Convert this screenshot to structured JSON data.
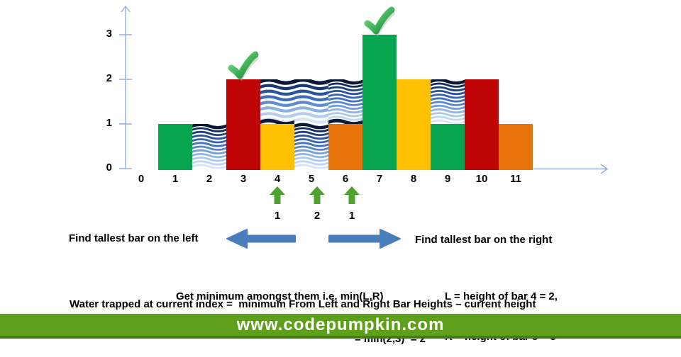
{
  "colors": {
    "green": "#08A550",
    "red": "#C00505",
    "yellow": "#FFC003",
    "orange": "#E7730B",
    "axis_blue": "#93AFD7",
    "arrow_blue": "#4A7EBB",
    "trapped_arrow_green": "#4DA32F",
    "check_gradient": [
      "#84DF8A",
      "#0A8A31"
    ],
    "check_shadow": "#9DB09D",
    "water_stripes": [
      "#0C1A33",
      "#1A3C80",
      "#2F5CAD",
      "#4A7AC6",
      "#7FA5DC",
      "#AECBEC",
      "#D7E4F6"
    ]
  },
  "chart_data": {
    "type": "bar",
    "x_tick_labels": [
      "0",
      "1",
      "2",
      "3",
      "4",
      "5",
      "6",
      "7",
      "8",
      "9",
      "10",
      "11"
    ],
    "y_tick_labels": [
      "0",
      "1",
      "2",
      "3"
    ],
    "ylim": [
      0,
      3.6
    ],
    "grid": false,
    "bars": [
      {
        "x": 1,
        "height": 1,
        "color": "green"
      },
      {
        "x": 2,
        "height": 0,
        "color": null
      },
      {
        "x": 3,
        "height": 2,
        "color": "red",
        "checkmark": true
      },
      {
        "x": 4,
        "height": 1,
        "color": "yellow"
      },
      {
        "x": 5,
        "height": 0,
        "color": null
      },
      {
        "x": 6,
        "height": 1,
        "color": "orange"
      },
      {
        "x": 7,
        "height": 3,
        "color": "green",
        "checkmark": true
      },
      {
        "x": 8,
        "height": 2,
        "color": "yellow"
      },
      {
        "x": 9,
        "height": 1,
        "color": "green"
      },
      {
        "x": 10,
        "height": 2,
        "color": "red"
      },
      {
        "x": 11,
        "height": 1,
        "color": "orange"
      }
    ],
    "water_regions": [
      {
        "x": 2,
        "from": 0,
        "to": 1,
        "pitch": [
          5.2
        ],
        "bottom_line": false
      },
      {
        "x": 4,
        "from": 1,
        "to": 2,
        "pitch": [
          7.9
        ],
        "bottom_line": true
      },
      {
        "x": 5,
        "from": 0,
        "to": 2,
        "pitch": [
          7.9,
          5.2
        ],
        "bottom_line": false
      },
      {
        "x": 6,
        "from": 1,
        "to": 2,
        "pitch": [
          5.2
        ],
        "bottom_line": true
      },
      {
        "x": 9,
        "from": 1,
        "to": 2,
        "pitch": [
          5.2
        ],
        "bottom_line": false
      }
    ],
    "trapped_water_labels": [
      {
        "x": 4,
        "label": "1"
      },
      {
        "x": 5,
        "label": "2"
      },
      {
        "x": 6,
        "label": "1"
      }
    ]
  },
  "annotations": {
    "left_label": "Find tallest bar on the left",
    "right_label": "Find tallest bar on the right",
    "min_line1": "Get minimum amongst them i.e. min(L,R)",
    "min_line2": "= min(2,3)  = 2",
    "lr_line1": "L = height of bar 4 = 2,",
    "lr_line2": "R = height of bar 8 = 3",
    "formula": "Water trapped at current index =  minimum From Left and Right Bar Heights – current height"
  },
  "footer": {
    "url": "www.codepumpkin.com",
    "bg": "#5EA01C",
    "border": "#417E0C"
  }
}
